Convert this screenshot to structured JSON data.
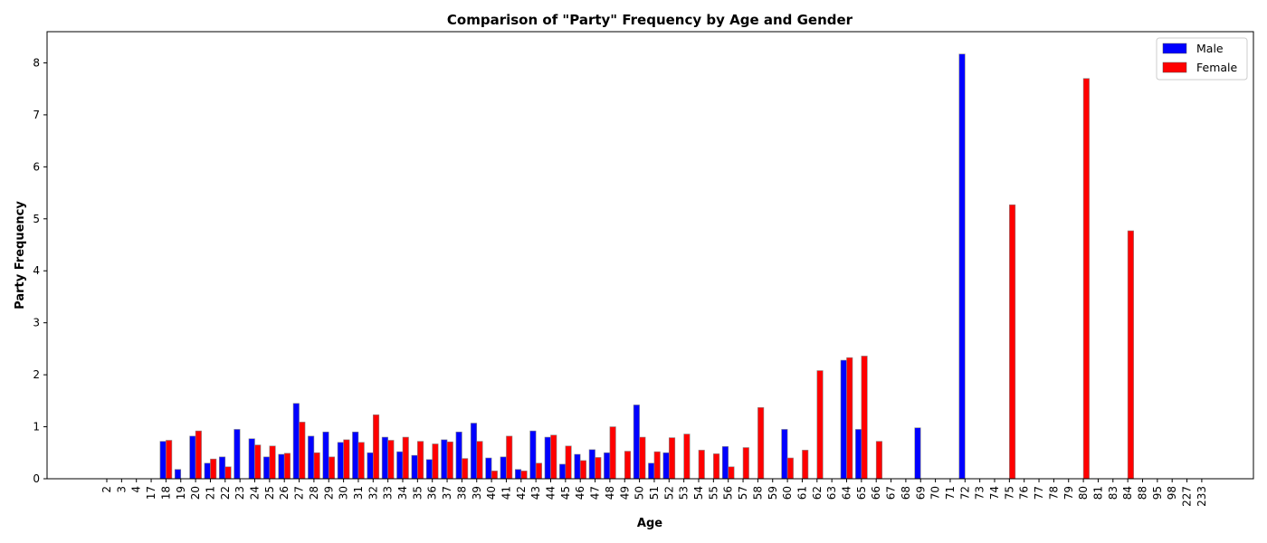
{
  "chart_data": {
    "type": "bar",
    "title": "Comparison of \"Party\" Frequency by Age and Gender",
    "xlabel": "Age",
    "ylabel": "Party Frequency",
    "ylim": [
      0,
      8.6
    ],
    "yticks": [
      0,
      1,
      2,
      3,
      4,
      5,
      6,
      7,
      8
    ],
    "grid": false,
    "legend_position": "top-right",
    "categories": [
      "2",
      "3",
      "4",
      "17",
      "18",
      "19",
      "20",
      "21",
      "22",
      "23",
      "24",
      "25",
      "26",
      "27",
      "28",
      "29",
      "30",
      "31",
      "32",
      "33",
      "34",
      "35",
      "36",
      "37",
      "38",
      "39",
      "40",
      "41",
      "42",
      "43",
      "44",
      "45",
      "46",
      "47",
      "48",
      "49",
      "50",
      "51",
      "52",
      "53",
      "54",
      "55",
      "56",
      "57",
      "58",
      "59",
      "60",
      "61",
      "62",
      "63",
      "64",
      "65",
      "66",
      "67",
      "68",
      "69",
      "70",
      "71",
      "72",
      "73",
      "74",
      "75",
      "76",
      "77",
      "78",
      "79",
      "80",
      "81",
      "83",
      "84",
      "88",
      "95",
      "98",
      "227",
      "233"
    ],
    "series": [
      {
        "name": "Male",
        "color": "#0000ff",
        "values": [
          0,
          0,
          0,
          0,
          0.72,
          0.18,
          0.82,
          0.3,
          0.42,
          0.95,
          0.77,
          0.42,
          0.47,
          1.45,
          0.82,
          0.9,
          0.7,
          0.9,
          0.5,
          0.8,
          0.52,
          0.45,
          0.37,
          0.75,
          0.9,
          1.07,
          0.4,
          0.42,
          0.18,
          0.92,
          0.8,
          0.28,
          0.47,
          0.56,
          0.5,
          0,
          1.42,
          0.3,
          0.5,
          0,
          0,
          0,
          0.62,
          0,
          0,
          0,
          0.95,
          0,
          0,
          0,
          2.28,
          0.95,
          0,
          0,
          0,
          0.98,
          0,
          0,
          8.17,
          0,
          0,
          0,
          0,
          0,
          0,
          0,
          0,
          0,
          0,
          0,
          0,
          0,
          0,
          0,
          0
        ]
      },
      {
        "name": "Female",
        "color": "#ff0000",
        "values": [
          0,
          0,
          0,
          0,
          0.74,
          0,
          0.92,
          0.38,
          0.23,
          0,
          0.65,
          0.63,
          0.49,
          1.09,
          0.5,
          0.42,
          0.75,
          0.7,
          1.23,
          0.74,
          0.8,
          0.72,
          0.67,
          0.71,
          0.39,
          0.72,
          0.15,
          0.82,
          0.15,
          0.3,
          0.84,
          0.63,
          0.35,
          0.41,
          1.0,
          0.53,
          0.8,
          0.52,
          0.79,
          0.86,
          0.55,
          0.48,
          0.23,
          0.6,
          1.37,
          0,
          0.4,
          0.55,
          2.08,
          0,
          2.33,
          2.36,
          0.72,
          0,
          0,
          0,
          0,
          0,
          0,
          0,
          0,
          5.27,
          0,
          0,
          0,
          0,
          7.7,
          0,
          0,
          4.77,
          0,
          0,
          0,
          0,
          0
        ]
      }
    ]
  }
}
